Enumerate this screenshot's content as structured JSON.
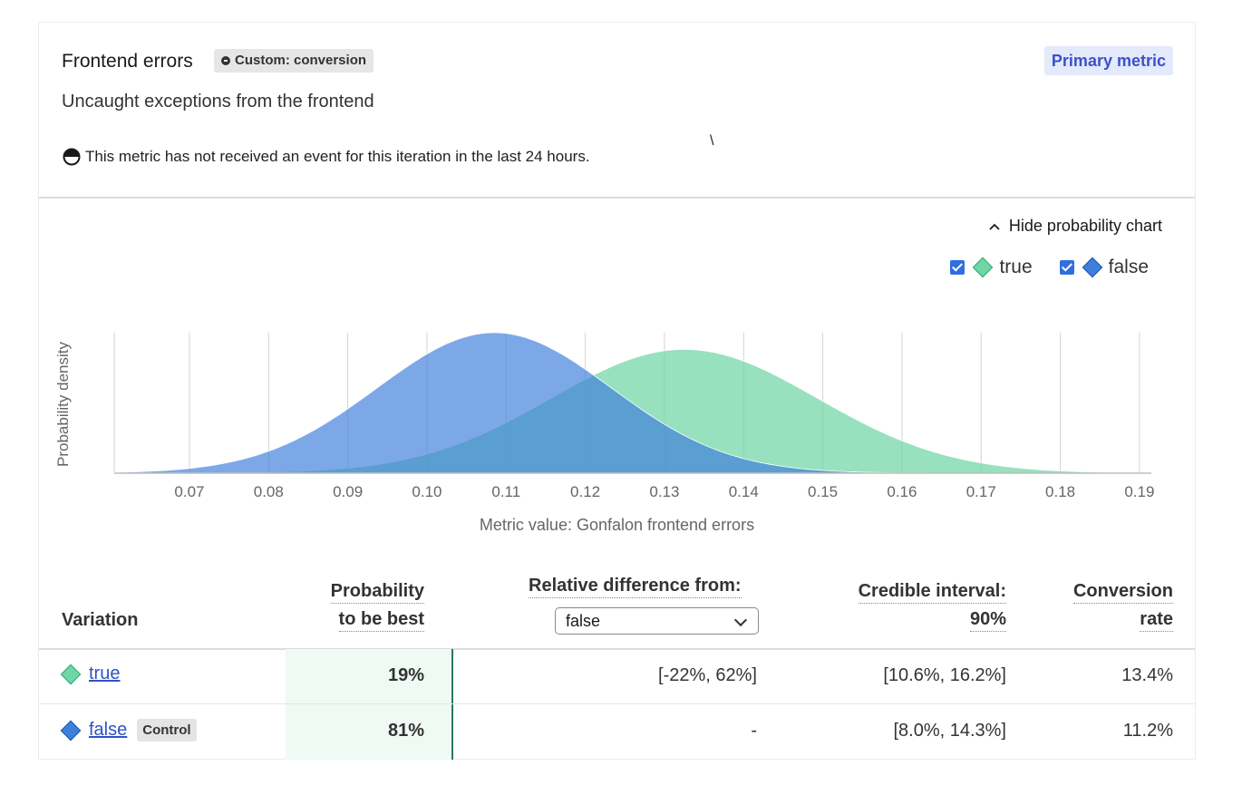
{
  "header": {
    "title": "Frontend errors",
    "kind_badge": "Custom: conversion",
    "primary_badge": "Primary metric",
    "description": "Uncaught exceptions from the frontend",
    "warning": "This metric has not received an event for this iteration in the last 24 hours.",
    "stray_mark": "\\"
  },
  "chart_controls": {
    "toggle_label": "Hide probability chart",
    "legend": [
      {
        "label": "true",
        "color": "#6fd6a6",
        "checked": true
      },
      {
        "label": "false",
        "color": "#3e7fdc",
        "checked": true
      }
    ]
  },
  "chart_data": {
    "type": "area",
    "xlabel": "Metric value: Gonfalon frontend errors",
    "ylabel": "Probability density",
    "xlim": [
      0.0605,
      0.1915
    ],
    "xticks": [
      "0.07",
      "0.08",
      "0.09",
      "0.10",
      "0.11",
      "0.12",
      "0.13",
      "0.14",
      "0.15",
      "0.16",
      "0.17",
      "0.18",
      "0.19"
    ],
    "grid": true,
    "series": [
      {
        "name": "true",
        "color": "#6fd6a6",
        "mean": 0.1325,
        "sd": 0.0168
      },
      {
        "name": "false",
        "color": "#3e7fdc",
        "mean": 0.1085,
        "sd": 0.0148
      }
    ]
  },
  "table": {
    "headers": {
      "variation": "Variation",
      "prob_line1": "Probability",
      "prob_line2": "to be best",
      "rel_diff": "Relative difference from:",
      "rel_diff_selected": "false",
      "ci_line1": "Credible interval:",
      "ci_line2": "90%",
      "conv_line1": "Conversion",
      "conv_line2": "rate"
    },
    "rows": [
      {
        "name": "true",
        "color": "#6fd6a6",
        "control": "",
        "prob": "19%",
        "rel_diff": "[-22%, 62%]",
        "ci": "[10.6%, 16.2%]",
        "rate": "13.4%"
      },
      {
        "name": "false",
        "color": "#3e7fdc",
        "control": "Control",
        "prob": "81%",
        "rel_diff": "-",
        "ci": "[8.0%, 14.3%]",
        "rate": "11.2%"
      }
    ]
  }
}
